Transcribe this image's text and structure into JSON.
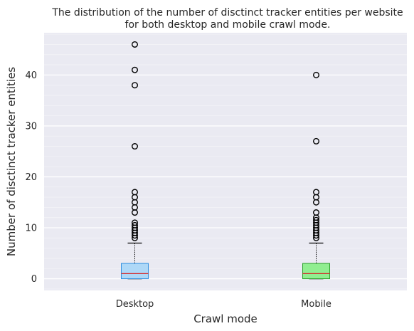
{
  "chart_data": {
    "type": "box",
    "title": "The distribution of the number of disctinct tracker entities per website for both desktop and mobile crawl mode.",
    "title_lines": [
      "The distribution of the number of disctinct tracker entities per website",
      "for both desktop and mobile crawl mode."
    ],
    "xlabel": "Crawl mode",
    "ylabel": "Number of disctinct tracker entities",
    "categories": [
      "Desktop",
      "Mobile"
    ],
    "ylim": [
      -2.3,
      48.3
    ],
    "yticks": [
      0,
      10,
      20,
      30,
      40
    ],
    "grid": true,
    "background": "#eaeaf2",
    "series": [
      {
        "label": "Desktop",
        "min": 0,
        "q1": 0,
        "median": 1,
        "q3": 3,
        "max": 7,
        "outliers": [
          8,
          8.5,
          9,
          9.5,
          10,
          10.5,
          11,
          13,
          14,
          15,
          16,
          17,
          26,
          38,
          41,
          46
        ],
        "box_fill": "#aed8f7",
        "box_edge": "#2f8fe0"
      },
      {
        "label": "Mobile",
        "min": 0,
        "q1": 0,
        "median": 1,
        "q3": 3,
        "max": 7,
        "outliers": [
          8,
          8.5,
          9,
          9.5,
          10,
          10.5,
          11,
          11.5,
          12,
          13,
          15,
          16,
          17,
          27,
          40
        ],
        "box_fill": "#90ee90",
        "box_edge": "#2ca02c"
      }
    ],
    "median_color": "#d62728"
  }
}
